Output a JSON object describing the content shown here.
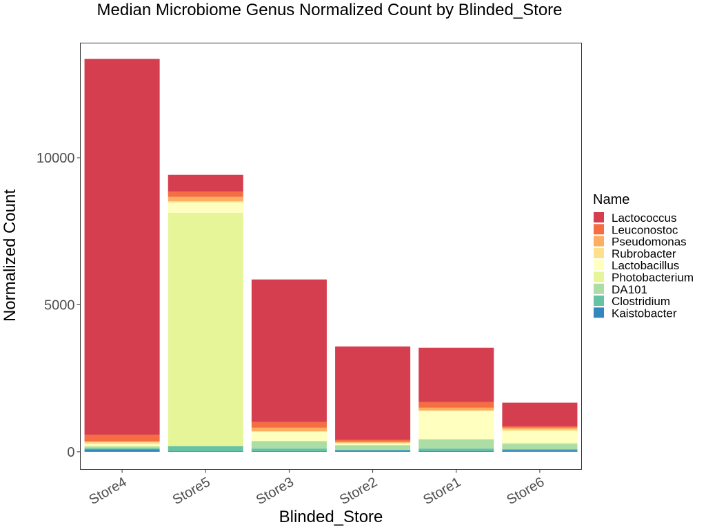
{
  "chart_data": {
    "type": "bar",
    "stacked": true,
    "title": "Median Microbiome Genus Normalized Count by Blinded_Store",
    "xlabel": "Blinded_Store",
    "ylabel": "Normalized Count",
    "ylim": [
      -600,
      13900
    ],
    "yticks": [
      0,
      5000,
      10000
    ],
    "grid": false,
    "legend_title": "Name",
    "legend_position": "right",
    "categories": [
      "Store4",
      "Store5",
      "Store3",
      "Store2",
      "Store1",
      "Store6"
    ],
    "series": [
      {
        "name": "Kaistobacter",
        "color": "#3288bd",
        "values": [
          80,
          20,
          20,
          50,
          30,
          60
        ]
      },
      {
        "name": "Clostridium",
        "color": "#66c2a5",
        "values": [
          40,
          170,
          90,
          20,
          80,
          30
        ]
      },
      {
        "name": "DA101",
        "color": "#abdda4",
        "values": [
          60,
          10,
          250,
          150,
          310,
          180
        ]
      },
      {
        "name": "Photobacterium",
        "color": "#e6f598",
        "values": [
          20,
          7930,
          10,
          10,
          10,
          40
        ]
      },
      {
        "name": "Lactobacillus",
        "color": "#ffffbf",
        "values": [
          60,
          350,
          310,
          50,
          950,
          400
        ]
      },
      {
        "name": "Rubrobacter",
        "color": "#fee08b",
        "values": [
          60,
          40,
          20,
          30,
          30,
          50
        ]
      },
      {
        "name": "Pseudomonas",
        "color": "#fdae61",
        "values": [
          40,
          150,
          120,
          30,
          90,
          60
        ]
      },
      {
        "name": "Leuconostoc",
        "color": "#f46d43",
        "values": [
          220,
          180,
          190,
          60,
          190,
          40
        ]
      },
      {
        "name": "Lactococcus",
        "color": "#d53e4f",
        "values": [
          12780,
          570,
          4850,
          3180,
          1850,
          810
        ]
      }
    ],
    "legend_order": [
      "Lactococcus",
      "Leuconostoc",
      "Pseudomonas",
      "Rubrobacter",
      "Lactobacillus",
      "Photobacterium",
      "DA101",
      "Clostridium",
      "Kaistobacter"
    ]
  }
}
